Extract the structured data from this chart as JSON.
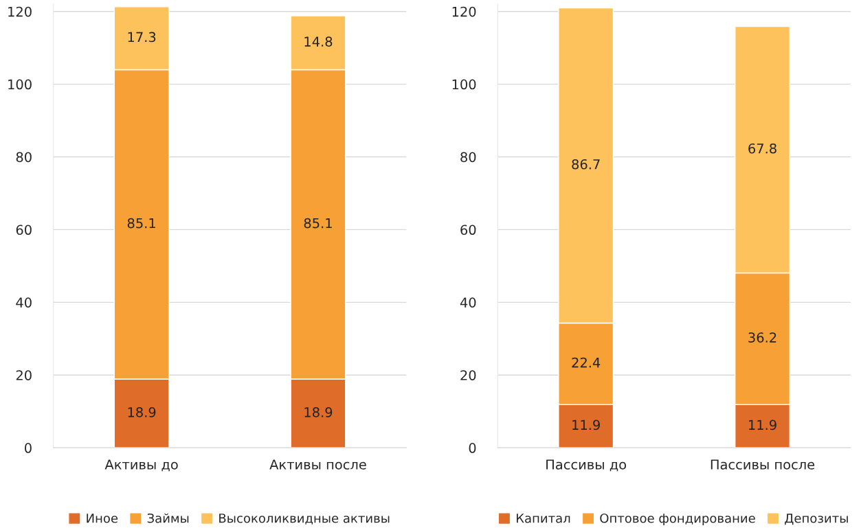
{
  "chart_data": [
    {
      "type": "bar",
      "stacked": true,
      "categories": [
        "Активы до",
        "Активы после"
      ],
      "series": [
        {
          "name": "Иное",
          "color": "#e06c2a",
          "values": [
            18.9,
            18.9
          ]
        },
        {
          "name": "Займы",
          "color": "#f7a035",
          "values": [
            85.1,
            85.1
          ]
        },
        {
          "name": "Высоколиквидные активы",
          "color": "#fec25c",
          "values": [
            17.3,
            14.8
          ]
        }
      ],
      "ylim": [
        0,
        122
      ],
      "yticks": [
        0,
        20,
        40,
        60,
        80,
        100,
        120
      ],
      "grid": "y",
      "legend": "bottom",
      "data_labels": true
    },
    {
      "type": "bar",
      "stacked": true,
      "categories": [
        "Пассивы до",
        "Пассивы после"
      ],
      "series": [
        {
          "name": "Капитал",
          "color": "#e06c2a",
          "values": [
            11.9,
            11.9
          ]
        },
        {
          "name": "Оптовое фондирование",
          "color": "#f7a035",
          "values": [
            22.4,
            36.2
          ]
        },
        {
          "name": "Депозиты",
          "color": "#fec25c",
          "values": [
            86.7,
            67.8
          ]
        }
      ],
      "ylim": [
        0,
        122
      ],
      "yticks": [
        0,
        20,
        40,
        60,
        80,
        100,
        120
      ],
      "grid": "y",
      "legend": "bottom",
      "data_labels": true
    }
  ]
}
